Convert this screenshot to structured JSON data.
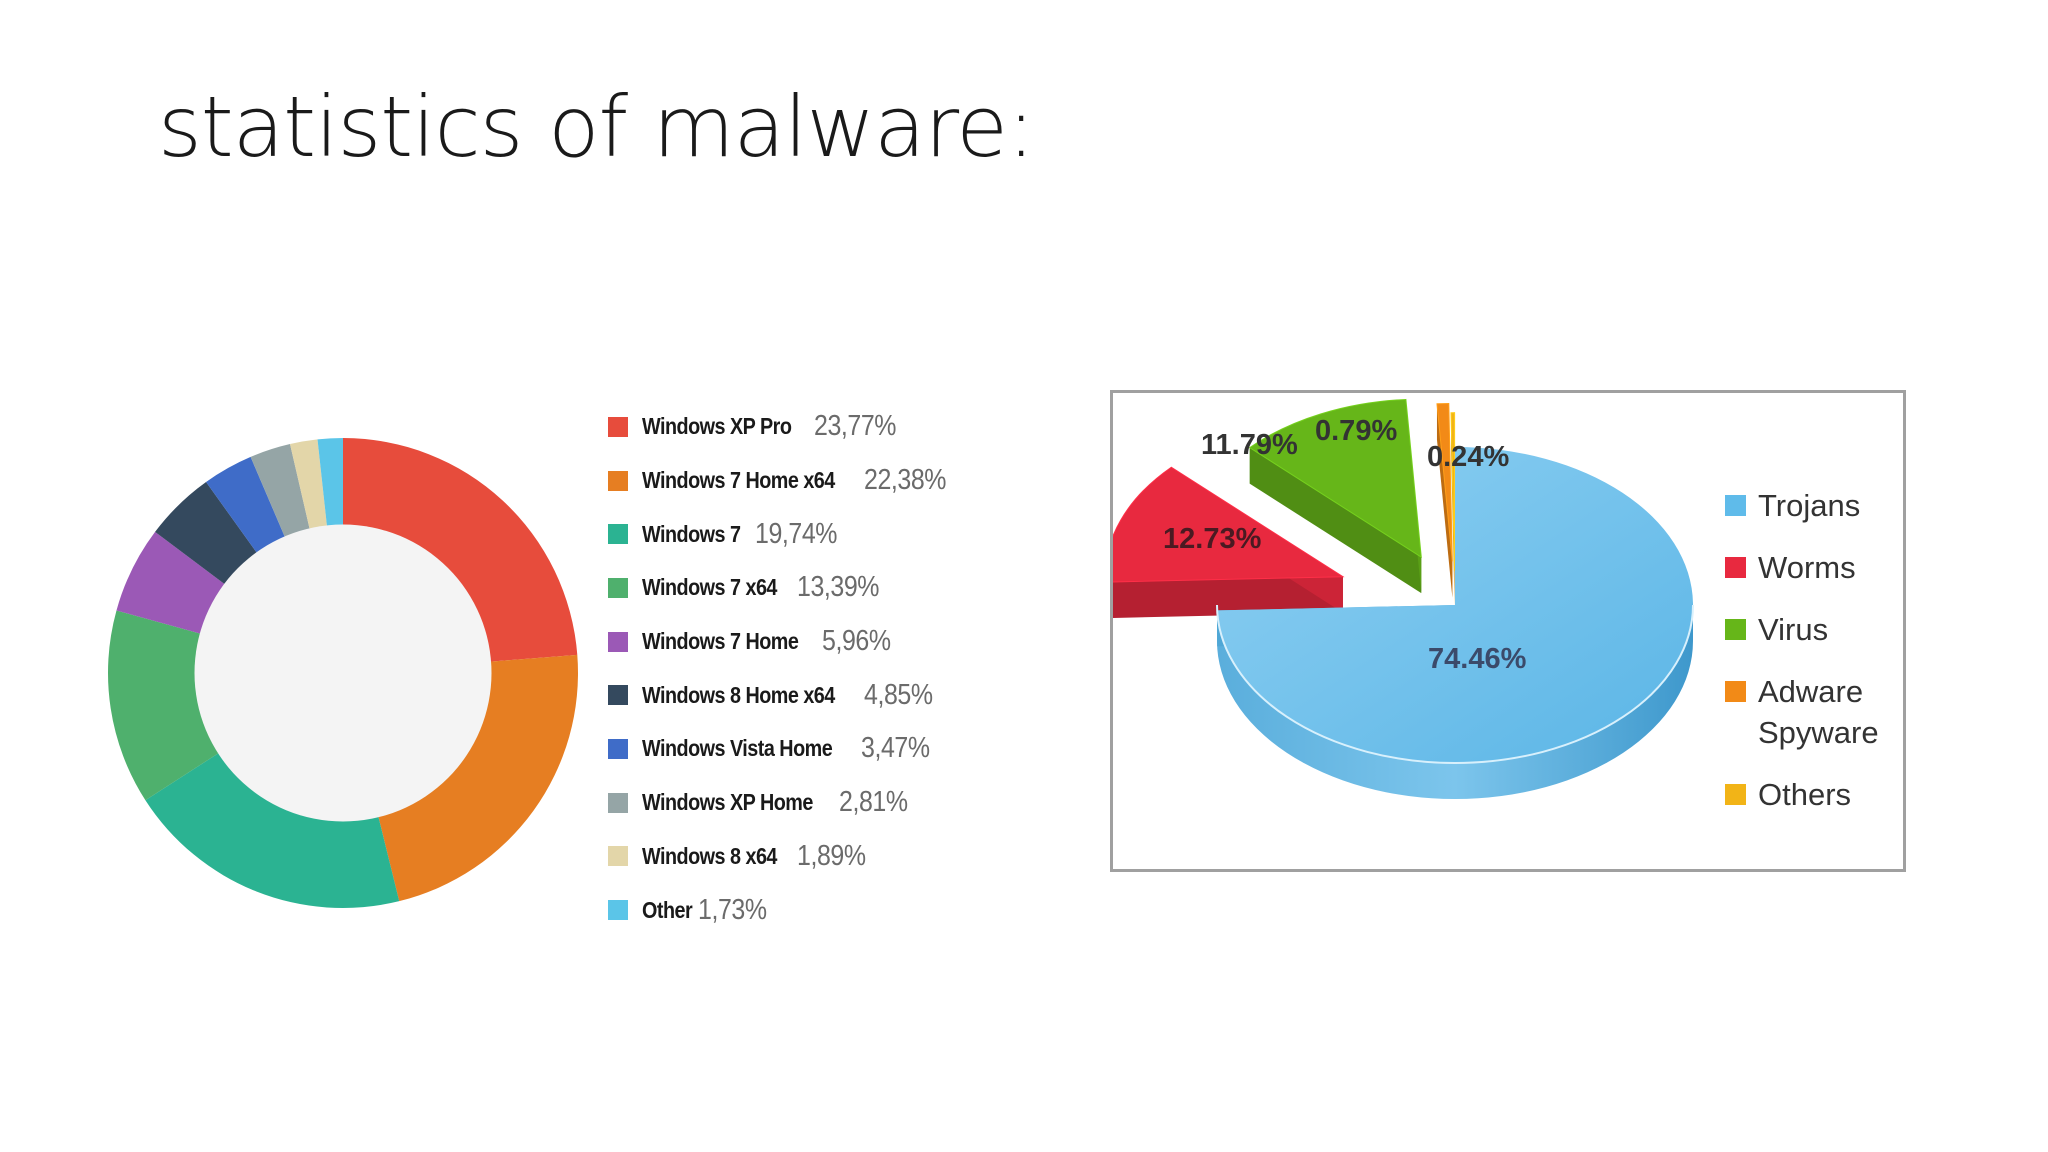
{
  "slide": {
    "title": "statistics of malware:"
  },
  "chart_data": [
    {
      "type": "pie",
      "style": "donut",
      "categories": [
        "Windows XP Pro",
        "Windows 7 Home x64",
        "Windows 7",
        "Windows 7 x64",
        "Windows 7 Home",
        "Windows 8 Home x64",
        "Windows Vista Home",
        "Windows XP Home",
        "Windows 8 x64",
        "Other"
      ],
      "values": [
        23.77,
        22.38,
        19.74,
        13.39,
        5.96,
        4.85,
        3.47,
        2.81,
        1.89,
        1.73
      ],
      "value_labels": [
        "23,77%",
        "22,38%",
        "19,74%",
        "13,39%",
        "5,96%",
        "4,85%",
        "3,47%",
        "2,81%",
        "1,89%",
        "1,73%"
      ],
      "colors": [
        "#e74c3c",
        "#e67e22",
        "#2bb392",
        "#4fb06d",
        "#9b59b6",
        "#34495e",
        "#3f6cc8",
        "#95a5a6",
        "#e3d6a9",
        "#5bc5e8"
      ],
      "legend_position": "right",
      "center_color": "#f4f4f4"
    },
    {
      "type": "pie",
      "style": "3d-exploded",
      "categories": [
        "Trojans",
        "Worms",
        "Virus",
        "Adware\nSpyware",
        "Others"
      ],
      "values": [
        74.46,
        12.73,
        11.79,
        0.79,
        0.24
      ],
      "value_labels": [
        "74.46%",
        "12.73%",
        "11.79%",
        "0.79%",
        "0.24%"
      ],
      "colors": [
        "#5fbbea",
        "#e8293f",
        "#66b619",
        "#f28a17",
        "#f2b417"
      ],
      "legend_position": "right"
    }
  ]
}
